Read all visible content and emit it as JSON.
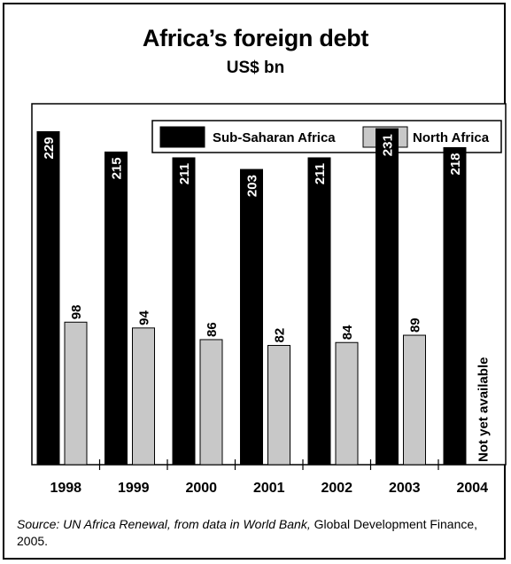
{
  "chart_data": {
    "type": "bar",
    "title": "Africa’s foreign debt",
    "subtitle": "US$ bn",
    "categories": [
      "1998",
      "1999",
      "2000",
      "2001",
      "2002",
      "2003",
      "2004"
    ],
    "series": [
      {
        "name": "Sub-Saharan Africa",
        "color": "#000000",
        "values": [
          229,
          215,
          211,
          203,
          211,
          231,
          218
        ]
      },
      {
        "name": "North Africa",
        "color": "#c8c8c8",
        "values": [
          98,
          94,
          86,
          82,
          84,
          89,
          null
        ]
      }
    ],
    "ylim": [
      0,
      250
    ],
    "grid": false,
    "legend_position": "top-right",
    "annotation": "Not yet available"
  },
  "source": {
    "italic": "Source: UN Africa Renewal, from data in World Bank,",
    "roman": " Global Development Finance, 2005."
  }
}
